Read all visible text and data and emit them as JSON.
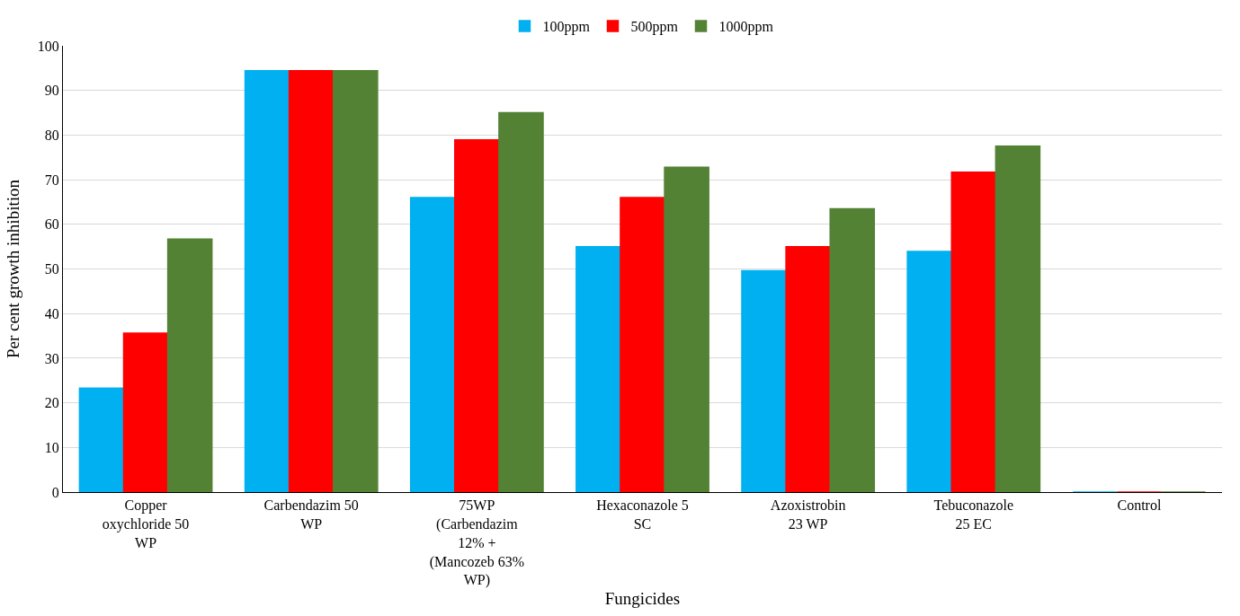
{
  "chart_data": {
    "type": "bar",
    "xlabel": "Fungicides",
    "ylabel": "Per cent growth inhibition",
    "categories": [
      "Copper oxychloride 50 WP",
      "Carbendazim 50 WP",
      "75WP (Carbendazim 12% + (Mancozeb 63% WP)",
      "Hexaconazole 5 SC",
      "Azoxistrobin 23 WP",
      "Tebuconazole 25 EC",
      "Control"
    ],
    "series": [
      {
        "name": "100ppm",
        "color": "#00b0f0",
        "values": [
          23.3,
          94.4,
          66,
          55,
          49.6,
          53.9,
          0
        ]
      },
      {
        "name": "500ppm",
        "color": "#ff0000",
        "values": [
          35.6,
          94.4,
          78.9,
          66,
          55,
          71.7,
          0
        ]
      },
      {
        "name": "1000ppm",
        "color": "#548235",
        "values": [
          56.7,
          94.4,
          85,
          72.8,
          63.5,
          77.5,
          0
        ]
      }
    ],
    "ylim": [
      0,
      100
    ],
    "yticks": [
      0,
      10,
      20,
      30,
      40,
      50,
      60,
      70,
      80,
      90,
      100
    ],
    "grid": "y",
    "legend": "top"
  }
}
